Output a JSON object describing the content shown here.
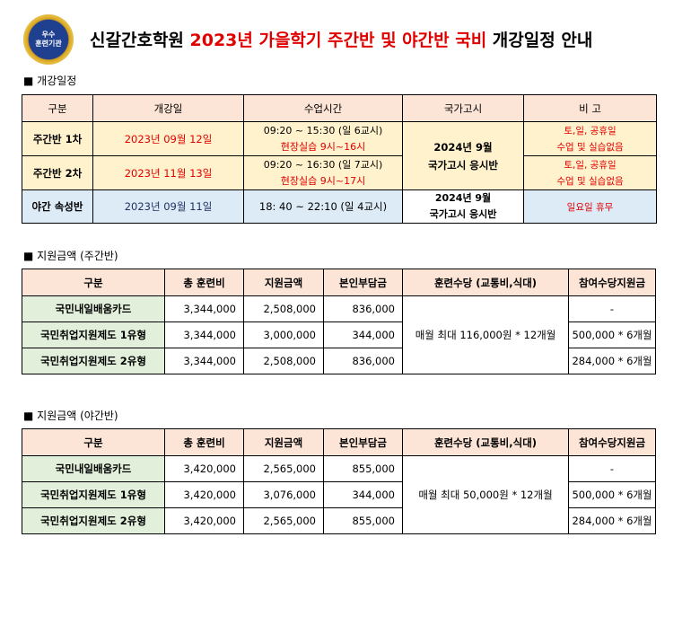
{
  "header": {
    "logo_text": [
      "우수",
      "훈련기관"
    ],
    "title_prefix": "신갈간호학원 ",
    "title_highlight": "2023년 가을학기 주간반 및 야간반 국비",
    "title_suffix": " 개강일정 안내"
  },
  "schedule": {
    "section": "■ 개강일정",
    "headers": [
      "구분",
      "개강일",
      "수업시간",
      "국가고시",
      "비 고"
    ],
    "rows": [
      {
        "name": "주간반 1차",
        "date": "2023년 09월 12일",
        "time": "09:20 ~ 15:30 (일 6교시)",
        "practice": "현장실습 9시~16시",
        "note1": "토,일, 공휴일",
        "note2": "수업 및 실습없음"
      },
      {
        "name": "주간반 2차",
        "date": "2023년 11월 13일",
        "time": "09:20 ~ 16:30 (일 7교시)",
        "practice": "현장실습 9시~17시",
        "note1": "토,일, 공휴일",
        "note2": "수업 및 실습없음"
      },
      {
        "name": "야간 속성반",
        "date": "2023년 09월 11일",
        "time": "18: 40 ~ 22:10 (일 4교시)",
        "note": "일요일 휴무"
      }
    ],
    "exam_day": [
      "2024년 9월",
      "국가고시 응시반"
    ],
    "exam_night": [
      "2024년 9월",
      "국가고시 응시반"
    ]
  },
  "day_support": {
    "section": "■ 지원금액 (주간반)",
    "headers": [
      "구분",
      "총 훈련비",
      "지원금액",
      "본인부담금",
      "훈련수당 (교통비,식대)",
      "참여수당지원금"
    ],
    "rows": [
      [
        "국민내일배움카드",
        "3,344,000",
        "2,508,000",
        "836,000",
        "-"
      ],
      [
        "국민취업지원제도 1유형",
        "3,344,000",
        "3,000,000",
        "344,000",
        "500,000 * 6개월"
      ],
      [
        "국민취업지원제도 2유형",
        "3,344,000",
        "2,508,000",
        "836,000",
        "284,000 * 6개월"
      ]
    ],
    "allowance": "매월 최대 116,000원 * 12개월"
  },
  "night_support": {
    "section": "■ 지원금액 (야간반)",
    "headers": [
      "구분",
      "총 훈련비",
      "지원금액",
      "본인부담금",
      "훈련수당 (교통비,식대)",
      "참여수당지원금"
    ],
    "rows": [
      [
        "국민내일배움카드",
        "3,420,000",
        "2,565,000",
        "855,000",
        "-"
      ],
      [
        "국민취업지원제도 1유형",
        "3,420,000",
        "3,076,000",
        "344,000",
        "500,000 * 6개월"
      ],
      [
        "국민취업지원제도 2유형",
        "3,420,000",
        "2,565,000",
        "855,000",
        "284,000 * 6개월"
      ]
    ],
    "allowance": "매월 최대 50,000원 * 12개월"
  }
}
